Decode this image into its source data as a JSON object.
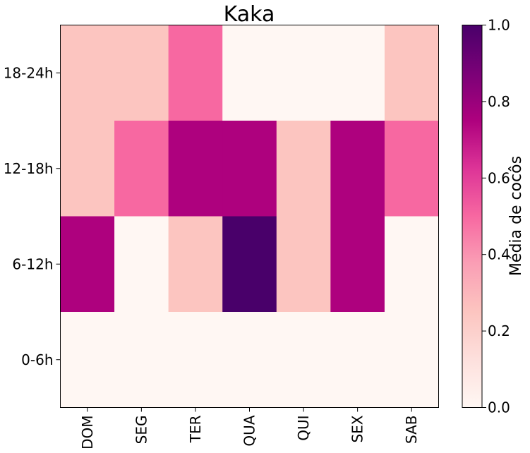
{
  "chart_data": {
    "type": "heatmap",
    "title": "Kaka",
    "xlabel": "",
    "ylabel": "",
    "x_categories": [
      "DOM",
      "SEG",
      "TER",
      "QUA",
      "QUI",
      "SEX",
      "SAB"
    ],
    "y_categories": [
      "18-24h",
      "12-18h",
      "6-12h",
      "0-6h"
    ],
    "values": [
      [
        0.25,
        0.25,
        0.5,
        0.0,
        0.0,
        0.0,
        0.25
      ],
      [
        0.25,
        0.5,
        0.75,
        0.75,
        0.25,
        0.75,
        0.5
      ],
      [
        0.75,
        0.0,
        0.25,
        1.0,
        0.25,
        0.75,
        0.0
      ],
      [
        0.0,
        0.0,
        0.0,
        0.0,
        0.0,
        0.0,
        0.0
      ]
    ],
    "colorbar": {
      "label": "Média de cocôs",
      "range": [
        0.0,
        1.0
      ],
      "ticks": [
        "0.0",
        "0.2",
        "0.4",
        "0.6",
        "0.8",
        "1.0"
      ],
      "colormap": "RdPu"
    },
    "grid": false
  }
}
